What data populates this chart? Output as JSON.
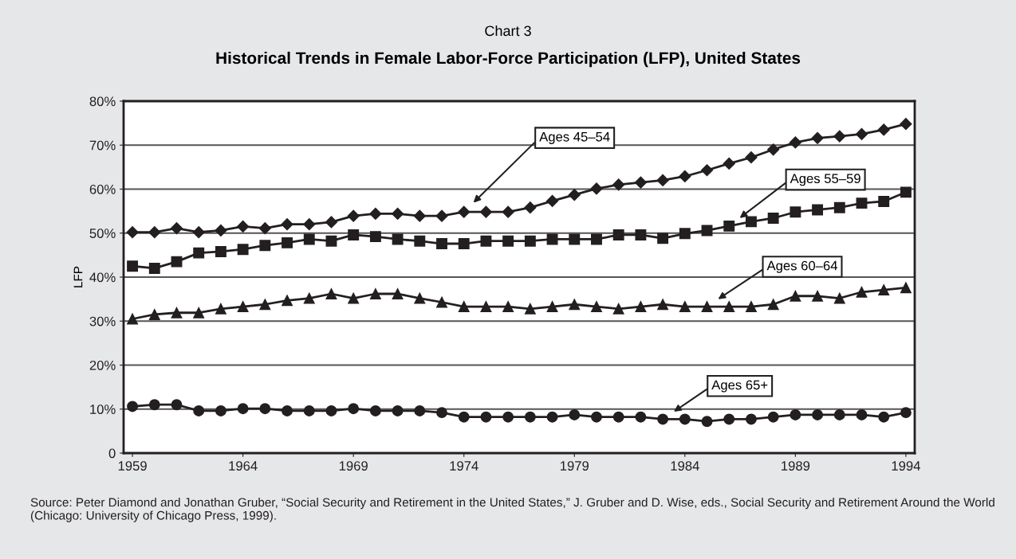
{
  "chart_data": {
    "type": "line",
    "title": "Chart 3",
    "subtitle": "Historical Trends in Female Labor-Force Participation (LFP), United States",
    "ylabel": "LFP",
    "x": [
      1959,
      1960,
      1961,
      1962,
      1963,
      1964,
      1965,
      1966,
      1967,
      1968,
      1969,
      1970,
      1971,
      1972,
      1973,
      1974,
      1975,
      1976,
      1977,
      1978,
      1979,
      1980,
      1981,
      1982,
      1983,
      1984,
      1985,
      1986,
      1987,
      1988,
      1989,
      1990,
      1991,
      1992,
      1993,
      1994
    ],
    "series": [
      {
        "name": "Ages 45–54",
        "color": "#231f20",
        "marker": "diamond",
        "values": [
          50.2,
          50.2,
          51.1,
          50.2,
          50.6,
          51.5,
          51.1,
          52,
          52,
          52.5,
          53.9,
          54.4,
          54.4,
          53.9,
          53.9,
          54.8,
          54.8,
          54.8,
          55.8,
          57.3,
          58.7,
          60.1,
          61,
          61.5,
          62,
          62.9,
          64.3,
          65.8,
          67.2,
          69,
          70.6,
          71.6,
          72,
          72.5,
          73.5,
          74.8
        ]
      },
      {
        "name": "Ages 55–59",
        "color": "#231f20",
        "marker": "square",
        "values": [
          42.5,
          42,
          43.5,
          45.5,
          45.8,
          46.3,
          47.2,
          47.8,
          48.6,
          48.2,
          49.6,
          49.2,
          48.6,
          48.2,
          47.6,
          47.6,
          48.2,
          48.2,
          48.2,
          48.6,
          48.6,
          48.6,
          49.6,
          49.6,
          48.8,
          49.9,
          50.6,
          51.6,
          52.6,
          53.4,
          54.8,
          55.3,
          55.8,
          56.8,
          57.2,
          59.3
        ]
      },
      {
        "name": "Ages 60–64",
        "color": "#231f20",
        "marker": "triangle",
        "values": [
          30.5,
          31.5,
          31.9,
          31.9,
          32.8,
          33.3,
          33.8,
          34.7,
          35.2,
          36.2,
          35.2,
          36.2,
          36.2,
          35.2,
          34.3,
          33.3,
          33.3,
          33.3,
          32.8,
          33.3,
          33.8,
          33.3,
          32.8,
          33.3,
          33.8,
          33.3,
          33.3,
          33.3,
          33.3,
          33.8,
          35.7,
          35.7,
          35.2,
          36.6,
          37.1,
          37.6
        ]
      },
      {
        "name": "Ages 65+",
        "color": "#231f20",
        "marker": "circle",
        "values": [
          10.6,
          11,
          11,
          9.6,
          9.6,
          10.1,
          10.1,
          9.6,
          9.6,
          9.6,
          10.1,
          9.6,
          9.6,
          9.6,
          9.2,
          8.2,
          8.2,
          8.2,
          8.2,
          8.2,
          8.7,
          8.2,
          8.2,
          8.2,
          7.7,
          7.7,
          7.2,
          7.7,
          7.7,
          8.2,
          8.7,
          8.7,
          8.7,
          8.7,
          8.2,
          9.2
        ]
      }
    ],
    "xlim": [
      1958.6,
      1994.4
    ],
    "xticks": [
      1959,
      1964,
      1969,
      1974,
      1979,
      1984,
      1989,
      1994
    ],
    "ylim": [
      0,
      80
    ],
    "yticks": [
      {
        "value": 0,
        "label": "0"
      },
      {
        "value": 10,
        "label": "10%"
      },
      {
        "value": 20,
        "label": "20%"
      },
      {
        "value": 30,
        "label": "30%"
      },
      {
        "value": 40,
        "label": "40%"
      },
      {
        "value": 50,
        "label": "50%"
      },
      {
        "value": 60,
        "label": "60%"
      },
      {
        "value": 70,
        "label": "70%"
      },
      {
        "value": 80,
        "label": "80%"
      }
    ],
    "grid": "y",
    "legend": false,
    "line_style": "solid",
    "annotations": [
      "Source: Peter Diamond and Jonathan Gruber, “Social Security and Retirement in the United States,” J. Gruber and D. Wise, eds., Social Security and Retirement Around the World (Chicago: University of Chicago Press, 1999)."
    ]
  }
}
